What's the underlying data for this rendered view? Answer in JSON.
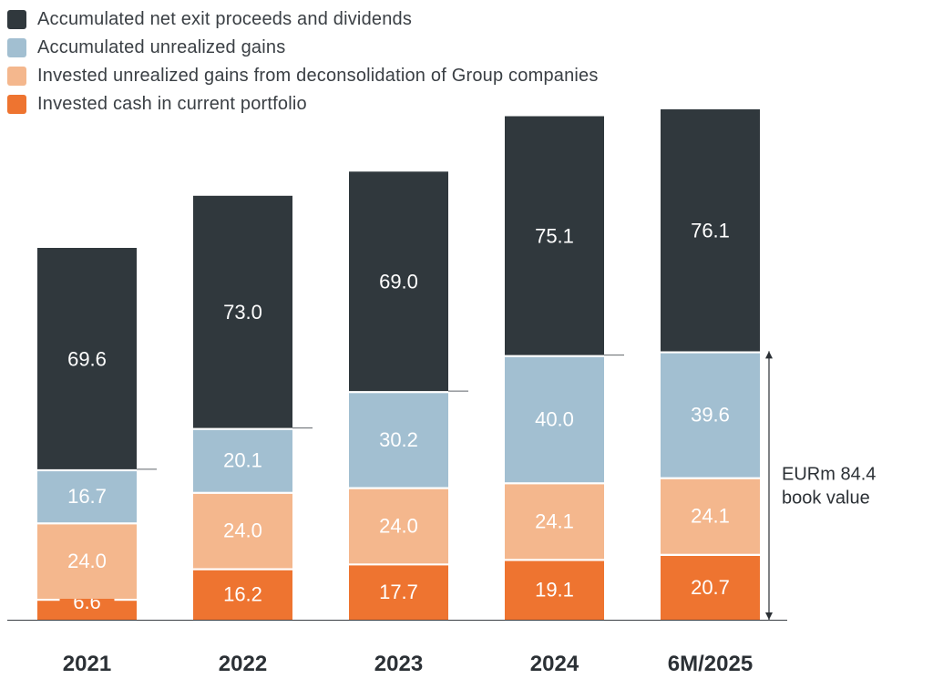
{
  "chart_data": {
    "type": "bar",
    "stacked": true,
    "categories": [
      "2021",
      "2022",
      "2023",
      "2024",
      "6M/2025"
    ],
    "series": [
      {
        "name": "Invested cash in current portfolio",
        "color": "#ee7430",
        "label_color": "#ffffff",
        "values": [
          6.6,
          16.2,
          17.7,
          19.1,
          20.7
        ]
      },
      {
        "name": "Invested unrealized gains from deconsolidation of Group companies",
        "color": "#f4b78d",
        "label_color": "#ffffff",
        "values": [
          24.0,
          24.0,
          24.0,
          24.1,
          24.1
        ]
      },
      {
        "name": "Accumulated unrealized gains",
        "color": "#a2bfd1",
        "label_color": "#ffffff",
        "values": [
          16.7,
          20.1,
          30.2,
          40.0,
          39.6
        ]
      },
      {
        "name": "Accumulated net exit proceeds and dividends",
        "color": "#30383d",
        "label_color": "#ffffff",
        "values": [
          69.6,
          73.0,
          69.0,
          75.1,
          76.1
        ]
      }
    ],
    "data_labels": [
      [
        "6.6",
        "16.2",
        "17.7",
        "19.1",
        "20.7"
      ],
      [
        "24.0",
        "24.0",
        "24.0",
        "24.1",
        "24.1"
      ],
      [
        "16.7",
        "20.1",
        "30.2",
        "40.0",
        "39.6"
      ],
      [
        "69.6",
        "73.0",
        "69.0",
        "75.1",
        "76.1"
      ]
    ],
    "legend_order": [
      3,
      2,
      1,
      0
    ],
    "legend_position": "top-left",
    "ylim": [
      0,
      160
    ],
    "grid": false,
    "annotation": {
      "line1": "EURm 84.4",
      "line2": "book value",
      "category_index": 4,
      "from_value": 0,
      "to_value": 84.4
    }
  }
}
